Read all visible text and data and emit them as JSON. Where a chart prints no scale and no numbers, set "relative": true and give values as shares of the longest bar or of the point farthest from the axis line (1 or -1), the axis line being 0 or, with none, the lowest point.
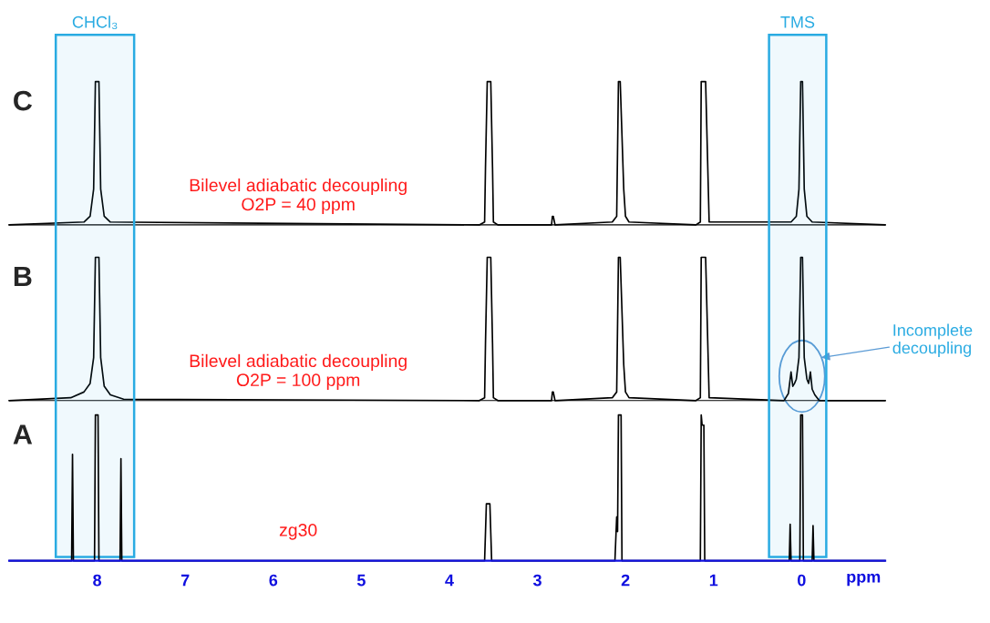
{
  "chart_data": [
    {
      "type": "line",
      "title": "C",
      "relative": true,
      "xlim": [
        9.0,
        -0.95
      ],
      "tick_labels": false,
      "grid": false,
      "legend": false,
      "annotations": [
        "Bilevel adiabatic decoupling\nO2P = 40 ppm"
      ],
      "series": [
        {
          "color": "#000000",
          "x": [
            9.0,
            8.15,
            8.08,
            8.04,
            8.02,
            7.98,
            7.96,
            7.92,
            7.85,
            3.66,
            3.6,
            3.59,
            3.57,
            3.55,
            3.53,
            3.51,
            3.5,
            3.45,
            2.84,
            2.83,
            2.82,
            2.8,
            2.15,
            2.1,
            2.08,
            2.06,
            2.02,
            2.0,
            1.96,
            1.2,
            1.15,
            1.14,
            1.12,
            1.1,
            1.09,
            1.05,
            0.12,
            0.06,
            0.03,
            0.01,
            -0.01,
            -0.03,
            -0.06,
            -0.12,
            -0.95
          ],
          "values": [
            0,
            0.02,
            0.06,
            0.25,
            1,
            1,
            0.25,
            0.06,
            0.02,
            0,
            0.02,
            0.4,
            1,
            1,
            1,
            0.4,
            0.02,
            0,
            0,
            0.06,
            0.06,
            0,
            0.02,
            0.06,
            1,
            1,
            0.25,
            0.06,
            0.02,
            0,
            0.02,
            1,
            1,
            1,
            1,
            0.02,
            0.02,
            0.06,
            0.25,
            1,
            1,
            0.25,
            0.06,
            0.02,
            0
          ]
        }
      ]
    },
    {
      "type": "line",
      "title": "B",
      "relative": true,
      "xlim": [
        9.0,
        -0.95
      ],
      "tick_labels": false,
      "grid": false,
      "legend": false,
      "annotations": [
        "Bilevel adiabatic decoupling\nO2P = 100 ppm",
        "Incomplete\ndecoupling"
      ],
      "series": [
        {
          "color": "#000000",
          "x": [
            9.0,
            8.3,
            8.15,
            8.08,
            8.04,
            8.02,
            7.98,
            7.96,
            7.92,
            7.85,
            7.7,
            3.66,
            3.6,
            3.59,
            3.57,
            3.55,
            3.53,
            3.51,
            3.5,
            3.45,
            2.84,
            2.83,
            2.82,
            2.8,
            2.15,
            2.1,
            2.08,
            2.06,
            2.02,
            2.0,
            1.96,
            1.2,
            1.15,
            1.14,
            1.12,
            1.1,
            1.09,
            1.05,
            0.2,
            0.15,
            0.12,
            0.1,
            0.08,
            0.06,
            0.03,
            0.01,
            -0.01,
            -0.03,
            -0.06,
            -0.08,
            -0.1,
            -0.12,
            -0.15,
            -0.2,
            -0.95
          ],
          "values": [
            0,
            0.02,
            0.06,
            0.12,
            0.3,
            1,
            1,
            0.3,
            0.1,
            0.04,
            0.01,
            0,
            0.02,
            0.4,
            1,
            1,
            1,
            0.4,
            0.02,
            0,
            0,
            0.06,
            0.06,
            0,
            0.02,
            0.06,
            1,
            1,
            0.25,
            0.06,
            0.02,
            0,
            0.02,
            1,
            1,
            1,
            1,
            0.02,
            0,
            0.05,
            0.2,
            0.1,
            0.12,
            0.15,
            0.3,
            1,
            1,
            0.3,
            0.15,
            0.12,
            0.2,
            0.08,
            0.04,
            0,
            0
          ]
        }
      ]
    },
    {
      "type": "line",
      "title": "A",
      "relative": true,
      "xlim": [
        9.0,
        -0.95
      ],
      "xticks": [
        8,
        7,
        6,
        5,
        4,
        3,
        2,
        1,
        0
      ],
      "xlabel": "ppm",
      "tick_labels": "x",
      "grid": false,
      "legend": false,
      "annotations": [
        "zg30"
      ],
      "bands": [
        {
          "axis": "x",
          "from": 8.47,
          "to": 7.58,
          "label": "CHCl₃",
          "color": "#29abe2"
        },
        {
          "axis": "x",
          "from": 0.37,
          "to": -0.28,
          "label": "TMS",
          "color": "#29abe2"
        }
      ],
      "series": [
        {
          "color": "#000000",
          "x": [
            9.0,
            8.29,
            8.28,
            8.27,
            8.03,
            8.02,
            7.99,
            7.98,
            7.74,
            7.73,
            7.72,
            3.6,
            3.58,
            3.54,
            3.52,
            2.12,
            2.1,
            2.09,
            2.08,
            2.05,
            2.04,
            1.15,
            1.14,
            1.13,
            1.11,
            1.1,
            0.14,
            0.13,
            0.12,
            0.02,
            0.01,
            -0.01,
            -0.02,
            -0.12,
            -0.13,
            -0.14,
            -0.95
          ],
          "values": [
            0,
            0,
            0.73,
            0,
            0,
            1,
            1,
            0,
            0,
            0.7,
            0,
            0,
            0.39,
            0.39,
            0,
            0,
            0.3,
            0.2,
            1,
            1,
            0,
            0,
            1,
            0.93,
            0.93,
            0,
            0,
            0.25,
            0,
            0,
            1,
            1,
            0,
            0,
            0.24,
            0,
            0
          ]
        }
      ]
    }
  ]
}
